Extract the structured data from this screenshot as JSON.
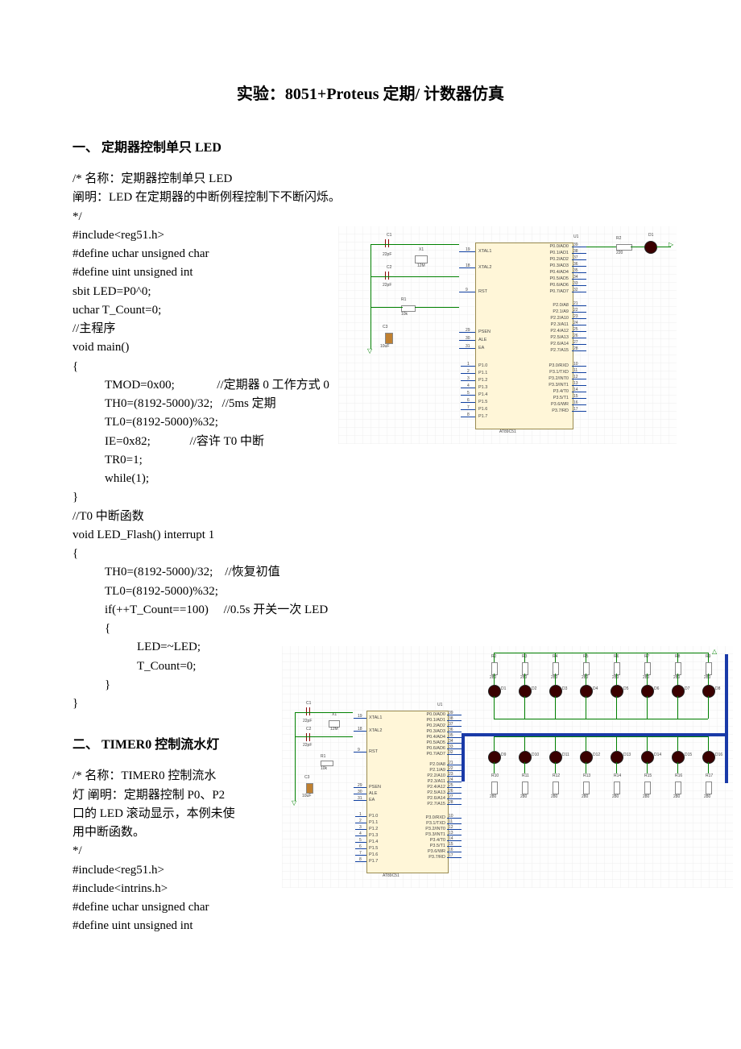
{
  "doc": {
    "title": "实验：8051+Proteus 定期/ 计数器仿真",
    "section1": {
      "header": "一、 定期器控制单只 LED",
      "comment_name": "/*    名称：定期器控制单只 LED",
      "comment_desc": "       阐明：LED 在定期器的中断例程控制下不断闪烁。",
      "comment_end": "*/",
      "lines": [
        "#include<reg51.h>",
        "#define uchar unsigned char",
        "#define uint unsigned int",
        "sbit LED=P0^0;",
        "uchar T_Count=0;",
        "//主程序",
        "void main()",
        "{"
      ],
      "body_indent": [
        "TMOD=0x00;              //定期器 0 工作方式 0",
        "TH0=(8192-5000)/32;   //5ms 定期",
        "TL0=(8192-5000)%32;",
        "IE=0x82;             //容许 T0 中断",
        "TR0=1;",
        "while(1);"
      ],
      "close1": "}",
      "isr_header": "//T0 中断函数",
      "isr_sig": "void LED_Flash() interrupt 1",
      "open2": "{",
      "isr_body": [
        "TH0=(8192-5000)/32;    //恢复初值",
        "TL0=(8192-5000)%32;",
        "if(++T_Count==100)     //0.5s 开关一次 LED",
        "{"
      ],
      "isr_inner": [
        "LED=~LED;",
        "T_Count=0;"
      ],
      "isr_close_inner": "}",
      "close2": "}"
    },
    "section2": {
      "header": "二、 TIMER0 控制流水灯",
      "comment_name": "/*    名称：TIMER0 控制流水",
      "comment_desc1": "灯   阐明：定期器控制 P0、P2",
      "comment_desc2": "口的 LED 滚动显示，本例未使",
      "comment_desc3": "用中断函数。",
      "comment_end": "*/",
      "lines": [
        "#include<reg51.h>",
        "#include<intrins.h>",
        "#define uchar unsigned char",
        "#define uint unsigned int"
      ]
    }
  },
  "schematic1": {
    "chip_ref": "U1",
    "chip_name": "AT89C51",
    "components": {
      "C1": "22pF",
      "C2": "22pF",
      "C3": "10uF",
      "R1": "10k",
      "X1": "12M",
      "R2": "220",
      "D1": "D1"
    },
    "left_pins_top": [
      "XTAL1",
      "XTAL2",
      "RST",
      "PSEN",
      "ALE",
      "EA"
    ],
    "left_pins_bot": [
      "P1.0",
      "P1.1",
      "P1.2",
      "P1.3",
      "P1.4",
      "P1.5",
      "P1.6",
      "P1.7"
    ],
    "right_pins_p0": [
      "P0.0/AD0",
      "P0.1/AD1",
      "P0.2/AD2",
      "P0.3/AD3",
      "P0.4/AD4",
      "P0.5/AD5",
      "P0.6/AD6",
      "P0.7/AD7"
    ],
    "right_pins_p2": [
      "P2.0/A8",
      "P2.1/A9",
      "P2.2/A10",
      "P2.3/A11",
      "P2.4/A12",
      "P2.5/A13",
      "P2.6/A14",
      "P2.7/A15"
    ],
    "right_pins_p3": [
      "P3.0/RXD",
      "P3.1/TXD",
      "P3.2/INT0",
      "P3.3/INT1",
      "P3.4/T0",
      "P3.5/T1",
      "P3.6/WR",
      "P3.7/RD"
    ],
    "pin_nums_left_top": [
      "19",
      "18",
      "9",
      "29",
      "30",
      "31"
    ],
    "pin_nums_left_bot": [
      "1",
      "2",
      "3",
      "4",
      "5",
      "6",
      "7",
      "8"
    ],
    "pin_nums_right_p0": [
      "39",
      "38",
      "37",
      "36",
      "35",
      "34",
      "33",
      "32"
    ],
    "pin_nums_right_p2": [
      "21",
      "22",
      "23",
      "24",
      "25",
      "26",
      "27",
      "28"
    ],
    "pin_nums_right_p3": [
      "10",
      "11",
      "12",
      "13",
      "14",
      "15",
      "16",
      "17"
    ],
    "colors": {
      "wire": "#1040a0",
      "chip": "#fff6d8",
      "grid": "#e8e8e8"
    }
  },
  "schematic2": {
    "chip_ref": "U1",
    "chip_name": "AT89C51",
    "components": {
      "C1": "22pF",
      "C2": "22pF",
      "C3": "10uF",
      "R1": "10k",
      "X1": "12M"
    },
    "leds_top": [
      "D1",
      "D2",
      "D3",
      "D4",
      "D5",
      "D6",
      "D7",
      "D8"
    ],
    "leds_bot": [
      "D9",
      "D10",
      "D11",
      "D12",
      "D13",
      "D14",
      "D15",
      "D16"
    ],
    "res_top": [
      "R2",
      "R3",
      "R4",
      "R5",
      "R6",
      "R7",
      "R8",
      "R9"
    ],
    "res_bot": [
      "R10",
      "R11",
      "R12",
      "R13",
      "R14",
      "R15",
      "R16",
      "R17"
    ],
    "res_val": "280",
    "left_pins_top": [
      "XTAL1",
      "XTAL2",
      "RST",
      "PSEN",
      "ALE",
      "EA"
    ],
    "left_pins_bot": [
      "P1.0",
      "P1.1",
      "P1.2",
      "P1.3",
      "P1.4",
      "P1.5",
      "P1.6",
      "P1.7"
    ],
    "right_pins_p0": [
      "P0.0/AD0",
      "P0.1/AD1",
      "P0.2/AD2",
      "P0.3/AD3",
      "P0.4/AD4",
      "P0.5/AD5",
      "P0.6/AD6",
      "P0.7/AD7"
    ],
    "right_pins_p2": [
      "P2.0/A8",
      "P2.1/A9",
      "P2.2/A10",
      "P2.3/A11",
      "P2.4/A12",
      "P2.5/A13",
      "P2.6/A14",
      "P2.7/A15"
    ],
    "right_pins_p3": [
      "P3.0/RXD",
      "P3.1/TXD",
      "P3.2/INT0",
      "P3.3/INT1",
      "P3.4/T0",
      "P3.5/T1",
      "P3.6/WR",
      "P3.7/RD"
    ],
    "pin_nums_left_top": [
      "19",
      "18",
      "9",
      "29",
      "30",
      "31"
    ],
    "pin_nums_left_bot": [
      "1",
      "2",
      "3",
      "4",
      "5",
      "6",
      "7",
      "8"
    ],
    "pin_nums_right_p0": [
      "39",
      "38",
      "37",
      "36",
      "35",
      "34",
      "33",
      "32"
    ],
    "pin_nums_right_p2": [
      "21",
      "22",
      "23",
      "24",
      "25",
      "26",
      "27",
      "28"
    ],
    "pin_nums_right_p3": [
      "10",
      "11",
      "12",
      "13",
      "14",
      "15",
      "16",
      "17"
    ],
    "colors": {
      "bus": "#1a3aa8",
      "wire": "#1040a0",
      "chip": "#fff6d8"
    }
  }
}
